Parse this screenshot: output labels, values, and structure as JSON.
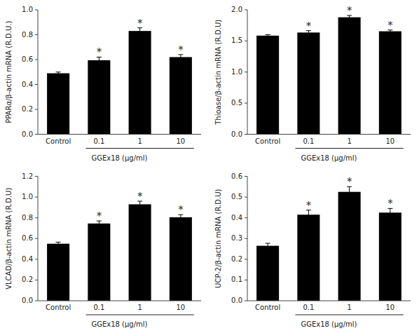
{
  "chart_data": [
    {
      "type": "bar",
      "xlabel": "GGEx18 (μg/ml)",
      "ylabel": "PPARα/β-actin mRNA (R.D.U.)",
      "categories": [
        "Control",
        "0.1",
        "1",
        "10"
      ],
      "values": [
        0.49,
        0.595,
        0.83,
        0.62
      ],
      "errors": [
        0.01,
        0.025,
        0.025,
        0.02
      ],
      "color": "#000000",
      "ylim": [
        0.0,
        1.0
      ],
      "yticks": [
        {
          "value": 0.0,
          "label": "0.0"
        },
        0.2,
        0.4,
        0.6,
        0.8,
        {
          "value": 1.0,
          "label": "1.0"
        }
      ],
      "annotations": [
        {
          "text": "*",
          "x": "0.1"
        },
        {
          "text": "*",
          "x": "1"
        },
        {
          "text": "*",
          "x": "10"
        }
      ],
      "grid": false
    },
    {
      "type": "bar",
      "xlabel": "GGEx18 (μg/ml)",
      "ylabel": "Thioase/β-actin mRNA (R.D.U)",
      "categories": [
        "Control",
        "0.1",
        "1",
        "10"
      ],
      "values": [
        1.585,
        1.635,
        1.88,
        1.655
      ],
      "errors": [
        0.015,
        0.03,
        0.03,
        0.02
      ],
      "color": "#000000",
      "ylim": [
        0.0,
        2.0
      ],
      "yticks": [
        {
          "value": 0.0,
          "label": "0.0"
        },
        0.5,
        {
          "value": 1.0,
          "label": "1.0"
        },
        1.5,
        {
          "value": 2.0,
          "label": "2.0"
        }
      ],
      "annotations": [
        {
          "text": "*",
          "x": "0.1"
        },
        {
          "text": "*",
          "x": "1"
        },
        {
          "text": "*",
          "x": "10"
        }
      ],
      "grid": false
    },
    {
      "type": "bar",
      "xlabel": "GGEx18 (μg/ml)",
      "ylabel": "VLCAD/β-actin mRNA (R.D.U)",
      "categories": [
        "Control",
        "0.1",
        "1",
        "10"
      ],
      "values": [
        0.55,
        0.745,
        0.93,
        0.805
      ],
      "errors": [
        0.015,
        0.025,
        0.03,
        0.025
      ],
      "color": "#000000",
      "ylim": [
        0.0,
        1.2
      ],
      "yticks": [
        {
          "value": 0.0,
          "label": "0.0"
        },
        0.2,
        0.4,
        0.6,
        0.8,
        {
          "value": 1.0,
          "label": "1.0"
        },
        1.2
      ],
      "annotations": [
        {
          "text": "*",
          "x": "0.1"
        },
        {
          "text": "*",
          "x": "1"
        },
        {
          "text": "*",
          "x": "10"
        }
      ],
      "grid": false
    },
    {
      "type": "bar",
      "xlabel": "GGEx18 (μg/ml)",
      "ylabel": "UCP-2/β-actin mRNA (R.D.U)",
      "categories": [
        "Control",
        "0.1",
        "1",
        "10"
      ],
      "values": [
        0.265,
        0.415,
        0.525,
        0.425
      ],
      "errors": [
        0.012,
        0.022,
        0.025,
        0.02
      ],
      "color": "#000000",
      "ylim": [
        0.0,
        0.6
      ],
      "yticks": [
        {
          "value": 0.0,
          "label": "0.0"
        },
        0.1,
        0.2,
        0.3,
        0.4,
        0.5,
        0.6
      ],
      "annotations": [
        {
          "text": "*",
          "x": "0.1"
        },
        {
          "text": "*",
          "x": "1"
        },
        {
          "text": "*",
          "x": "10"
        }
      ],
      "grid": false
    }
  ]
}
